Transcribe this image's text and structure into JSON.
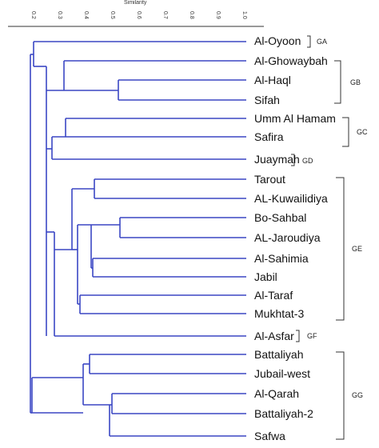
{
  "axis": {
    "title": "Similarity",
    "ticks": [
      "0.2",
      "0.3",
      "0.4",
      "0.5",
      "0.6",
      "0.7",
      "0.8",
      "0.9",
      "1.0"
    ]
  },
  "leaves": [
    "Al-Oyoon",
    "Al-Ghowaybah",
    "Al-Haql",
    "Sifah",
    "Umm Al Hamam",
    "Safira",
    "Juaymah",
    "Tarout",
    "AL-Kuwailidiya",
    "Bo-Sahbal",
    "AL-Jaroudiya",
    "Al-Sahimia",
    "Jabil",
    "Al-Taraf",
    "Mukhtat-3",
    "Al-Asfar",
    "Battaliyah",
    "Jubail-west",
    "Al-Qarah",
    "Battaliyah-2",
    "Safwa"
  ],
  "groups": [
    {
      "label": "GA"
    },
    {
      "label": "GB"
    },
    {
      "label": "GC"
    },
    {
      "label": "GD"
    },
    {
      "label": "GE"
    },
    {
      "label": "GF"
    },
    {
      "label": "GG"
    }
  ],
  "colors": {
    "branch": "#3b47c4",
    "bracket": "#333333"
  }
}
